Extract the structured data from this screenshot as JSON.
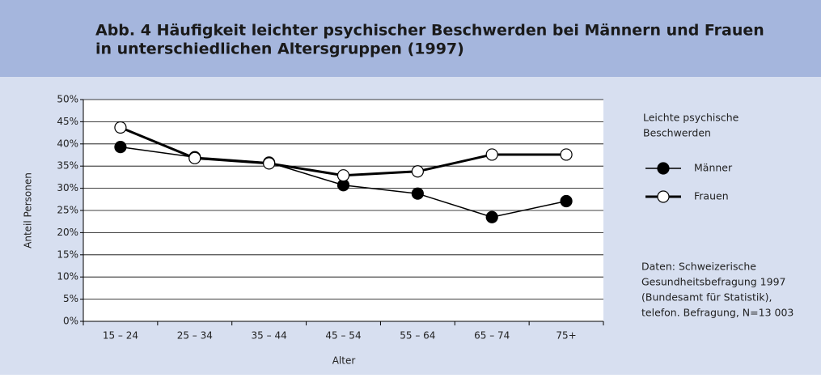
{
  "chart_data": {
    "type": "line",
    "title_lines": [
      "Abb. 4  Häufigkeit leichter psychischer Beschwerden bei Männern und Frauen",
      "in unterschiedlichen Altersgruppen (1997)"
    ],
    "x_label": "Alter",
    "y_label": "Anteil Personen",
    "categories": [
      "15 – 24",
      "25 – 34",
      "35 – 44",
      "45 – 54",
      "55 – 64",
      "65 – 74",
      "75+"
    ],
    "series": [
      {
        "name": "Männer",
        "color": "#000000",
        "marker_fill": "#000000",
        "values": [
          39.3,
          37.0,
          35.8,
          30.7,
          28.8,
          23.5,
          27.1
        ]
      },
      {
        "name": "Frauen",
        "color": "#000000",
        "marker_fill": "#ffffff",
        "values": [
          43.7,
          36.8,
          35.6,
          32.9,
          33.8,
          37.6,
          37.6
        ]
      }
    ],
    "ylim": [
      0,
      50
    ],
    "yticks": [
      {
        "value": 0,
        "label": "0%"
      },
      {
        "value": 5,
        "label": "5%"
      },
      {
        "value": 10,
        "label": "10%"
      },
      {
        "value": 15,
        "label": "15%"
      },
      {
        "value": 20,
        "label": "20%"
      },
      {
        "value": 25,
        "label": "25%"
      },
      {
        "value": 30,
        "label": "30%"
      },
      {
        "value": 35,
        "label": "35%"
      },
      {
        "value": 40,
        "label": "40%"
      },
      {
        "value": 45,
        "label": "45%"
      },
      {
        "value": 50,
        "label": "50%"
      }
    ],
    "grid": true,
    "legend_title_lines": [
      "Leichte psychische",
      "Beschwerden"
    ],
    "source_lines": [
      "Daten: Schweizerische",
      "Gesundheitsbefragung 1997",
      "(Bundesamt für Statistik),",
      "telefon. Befragung, N=13 003"
    ]
  }
}
